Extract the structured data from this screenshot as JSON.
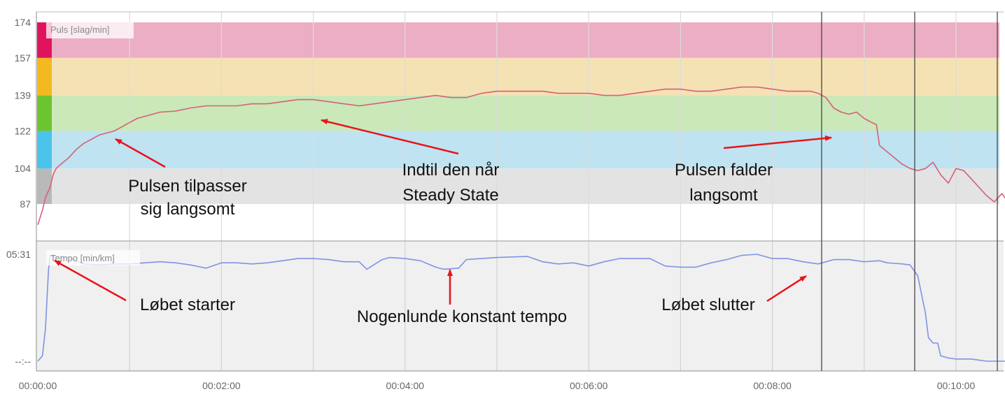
{
  "chart_data": [
    {
      "type": "line",
      "title": "Puls [slag/min]",
      "xlabel": "",
      "ylabel": "",
      "x_unit": "time (mm:ss)",
      "y_ticks": [
        "174",
        "157",
        "139",
        "122",
        "104",
        "87"
      ],
      "ylim": [
        74,
        178
      ],
      "xlim": [
        "00:00",
        "10:30"
      ],
      "grid": true,
      "zones": [
        {
          "from": 87,
          "to": 104,
          "color": "#e3e3e3",
          "marker": "#b9b9b9"
        },
        {
          "from": 104,
          "to": 122,
          "color": "#bfe3f1",
          "marker": "#4cc3ea"
        },
        {
          "from": 122,
          "to": 139,
          "color": "#cae8b8",
          "marker": "#6cc530"
        },
        {
          "from": 139,
          "to": 157,
          "color": "#f5e2b4",
          "marker": "#f4b921"
        },
        {
          "from": 157,
          "to": 174,
          "color": "#ecaec5",
          "marker": "#e0145e"
        }
      ],
      "line_color": "#d6607a",
      "series": [
        {
          "name": "",
          "points": [
            [
              "00:00",
              77
            ],
            [
              "00:03",
              84
            ],
            [
              "00:05",
              90
            ],
            [
              "00:08",
              95
            ],
            [
              "00:10",
              101
            ],
            [
              "00:12",
              104
            ],
            [
              "00:15",
              106
            ],
            [
              "00:20",
              109
            ],
            [
              "00:25",
              113
            ],
            [
              "00:30",
              116
            ],
            [
              "00:35",
              118
            ],
            [
              "00:40",
              120
            ],
            [
              "00:45",
              121
            ],
            [
              "00:50",
              122
            ],
            [
              "00:55",
              124
            ],
            [
              "01:00",
              126
            ],
            [
              "01:05",
              128
            ],
            [
              "01:10",
              129
            ],
            [
              "01:20",
              131
            ],
            [
              "01:30",
              131.5
            ],
            [
              "01:40",
              133
            ],
            [
              "01:50",
              134
            ],
            [
              "02:00",
              134
            ],
            [
              "02:10",
              134
            ],
            [
              "02:20",
              135
            ],
            [
              "02:30",
              135
            ],
            [
              "02:40",
              136
            ],
            [
              "02:50",
              137
            ],
            [
              "03:00",
              137
            ],
            [
              "03:10",
              136
            ],
            [
              "03:20",
              135
            ],
            [
              "03:30",
              134
            ],
            [
              "03:40",
              135
            ],
            [
              "03:50",
              136
            ],
            [
              "04:00",
              137
            ],
            [
              "04:10",
              138
            ],
            [
              "04:20",
              139
            ],
            [
              "04:30",
              138
            ],
            [
              "04:40",
              138
            ],
            [
              "04:50",
              140
            ],
            [
              "05:00",
              141
            ],
            [
              "05:10",
              141
            ],
            [
              "05:20",
              141
            ],
            [
              "05:30",
              141
            ],
            [
              "05:40",
              140
            ],
            [
              "05:50",
              140
            ],
            [
              "06:00",
              140
            ],
            [
              "06:10",
              139
            ],
            [
              "06:20",
              139
            ],
            [
              "06:30",
              140
            ],
            [
              "06:40",
              141
            ],
            [
              "06:50",
              142
            ],
            [
              "07:00",
              142
            ],
            [
              "07:10",
              141
            ],
            [
              "07:20",
              141
            ],
            [
              "07:30",
              142
            ],
            [
              "07:40",
              143
            ],
            [
              "07:50",
              143
            ],
            [
              "08:00",
              142
            ],
            [
              "08:10",
              141
            ],
            [
              "08:20",
              141
            ],
            [
              "08:25",
              141
            ],
            [
              "08:30",
              140
            ],
            [
              "08:35",
              138
            ],
            [
              "08:40",
              133
            ],
            [
              "08:45",
              131
            ],
            [
              "08:50",
              130
            ],
            [
              "08:55",
              131
            ],
            [
              "09:00",
              128
            ],
            [
              "09:05",
              126
            ],
            [
              "09:08",
              125
            ],
            [
              "09:10",
              115
            ],
            [
              "09:15",
              112
            ],
            [
              "09:20",
              109
            ],
            [
              "09:25",
              106
            ],
            [
              "09:30",
              104
            ],
            [
              "09:35",
              103
            ],
            [
              "09:40",
              104
            ],
            [
              "09:45",
              107
            ],
            [
              "09:50",
              101
            ],
            [
              "09:55",
              97
            ],
            [
              "10:00",
              104
            ],
            [
              "10:05",
              103
            ],
            [
              "10:10",
              99
            ],
            [
              "10:15",
              95
            ],
            [
              "10:20",
              91
            ],
            [
              "10:25",
              88
            ],
            [
              "10:30",
              92
            ],
            [
              "10:35",
              87
            ],
            [
              "10:40",
              88
            ],
            [
              "10:45",
              90
            ],
            [
              "10:50",
              97
            ],
            [
              "10:55",
              93
            ]
          ]
        }
      ],
      "annotations": [
        {
          "lines": [
            "Pulsen tilpasser",
            "sig langsomt"
          ],
          "points_to": [
            "00:50",
            124
          ]
        },
        {
          "lines": [
            "Indtil den når",
            "Steady State"
          ],
          "points_to": [
            "03:05",
            136
          ]
        },
        {
          "lines": [
            "Pulsen falder",
            "langsomt"
          ],
          "points_to": [
            "08:47",
            117
          ]
        }
      ]
    },
    {
      "type": "line",
      "title": "Tempo [min/km]",
      "xlabel": "",
      "ylabel": "",
      "x_unit": "time (mm:ss)",
      "y_ticks": [
        "05:31",
        "--:--"
      ],
      "grid": true,
      "line_color": "#7f93e3",
      "y_scale_note": "plotted as relative level from slow (--:--) to fast (05:31)",
      "series": [
        {
          "name": "",
          "points": [
            [
              "00:00",
              0.0
            ],
            [
              "00:03",
              0.05
            ],
            [
              "00:05",
              0.3
            ],
            [
              "00:07",
              0.85
            ],
            [
              "00:08",
              0.98
            ],
            [
              "00:15",
              0.98
            ],
            [
              "00:20",
              0.97
            ],
            [
              "00:30",
              0.91
            ],
            [
              "00:40",
              0.9
            ],
            [
              "00:50",
              0.91
            ],
            [
              "01:00",
              0.91
            ],
            [
              "01:10",
              0.92
            ],
            [
              "01:20",
              0.93
            ],
            [
              "01:30",
              0.92
            ],
            [
              "01:40",
              0.9
            ],
            [
              "01:50",
              0.87
            ],
            [
              "02:00",
              0.92
            ],
            [
              "02:10",
              0.92
            ],
            [
              "02:20",
              0.91
            ],
            [
              "02:30",
              0.92
            ],
            [
              "02:40",
              0.94
            ],
            [
              "02:50",
              0.96
            ],
            [
              "03:00",
              0.96
            ],
            [
              "03:10",
              0.95
            ],
            [
              "03:20",
              0.93
            ],
            [
              "03:30",
              0.93
            ],
            [
              "03:35",
              0.86
            ],
            [
              "03:45",
              0.95
            ],
            [
              "03:50",
              0.97
            ],
            [
              "04:00",
              0.96
            ],
            [
              "04:10",
              0.94
            ],
            [
              "04:20",
              0.88
            ],
            [
              "04:25",
              0.86
            ],
            [
              "04:35",
              0.87
            ],
            [
              "04:40",
              0.95
            ],
            [
              "04:50",
              0.96
            ],
            [
              "05:00",
              0.97
            ],
            [
              "05:20",
              0.98
            ],
            [
              "05:30",
              0.93
            ],
            [
              "05:40",
              0.91
            ],
            [
              "05:50",
              0.92
            ],
            [
              "06:00",
              0.89
            ],
            [
              "06:10",
              0.93
            ],
            [
              "06:20",
              0.96
            ],
            [
              "06:30",
              0.96
            ],
            [
              "06:40",
              0.96
            ],
            [
              "06:50",
              0.89
            ],
            [
              "07:00",
              0.88
            ],
            [
              "07:10",
              0.88
            ],
            [
              "07:20",
              0.92
            ],
            [
              "07:30",
              0.95
            ],
            [
              "07:40",
              0.99
            ],
            [
              "07:50",
              1.0
            ],
            [
              "08:00",
              0.96
            ],
            [
              "08:10",
              0.96
            ],
            [
              "08:20",
              0.93
            ],
            [
              "08:30",
              0.91
            ],
            [
              "08:40",
              0.95
            ],
            [
              "08:50",
              0.95
            ],
            [
              "09:00",
              0.93
            ],
            [
              "09:10",
              0.94
            ],
            [
              "09:15",
              0.92
            ],
            [
              "09:25",
              0.91
            ],
            [
              "09:30",
              0.9
            ],
            [
              "09:35",
              0.8
            ],
            [
              "09:40",
              0.45
            ],
            [
              "09:42",
              0.22
            ],
            [
              "09:45",
              0.17
            ],
            [
              "09:48",
              0.17
            ],
            [
              "09:50",
              0.05
            ],
            [
              "09:55",
              0.03
            ],
            [
              "10:00",
              0.02
            ],
            [
              "10:10",
              0.02
            ],
            [
              "10:20",
              0.0
            ],
            [
              "10:30",
              0.0
            ],
            [
              "10:40",
              0.0
            ],
            [
              "10:55",
              0.0
            ]
          ]
        }
      ],
      "annotations": [
        {
          "lines": [
            "Løbet starter"
          ],
          "points_to": [
            "00:09",
            0.97
          ]
        },
        {
          "lines": [
            "Nogenlunde konstant tempo"
          ],
          "points_to": [
            "04:45",
            0.87
          ]
        },
        {
          "lines": [
            "Løbet slutter"
          ],
          "points_to": [
            "08:50",
            0.85
          ]
        }
      ]
    }
  ],
  "x_ticks": [
    "00:00:00",
    "00:02:00",
    "00:04:00",
    "00:06:00",
    "00:08:00",
    "00:10:00"
  ]
}
